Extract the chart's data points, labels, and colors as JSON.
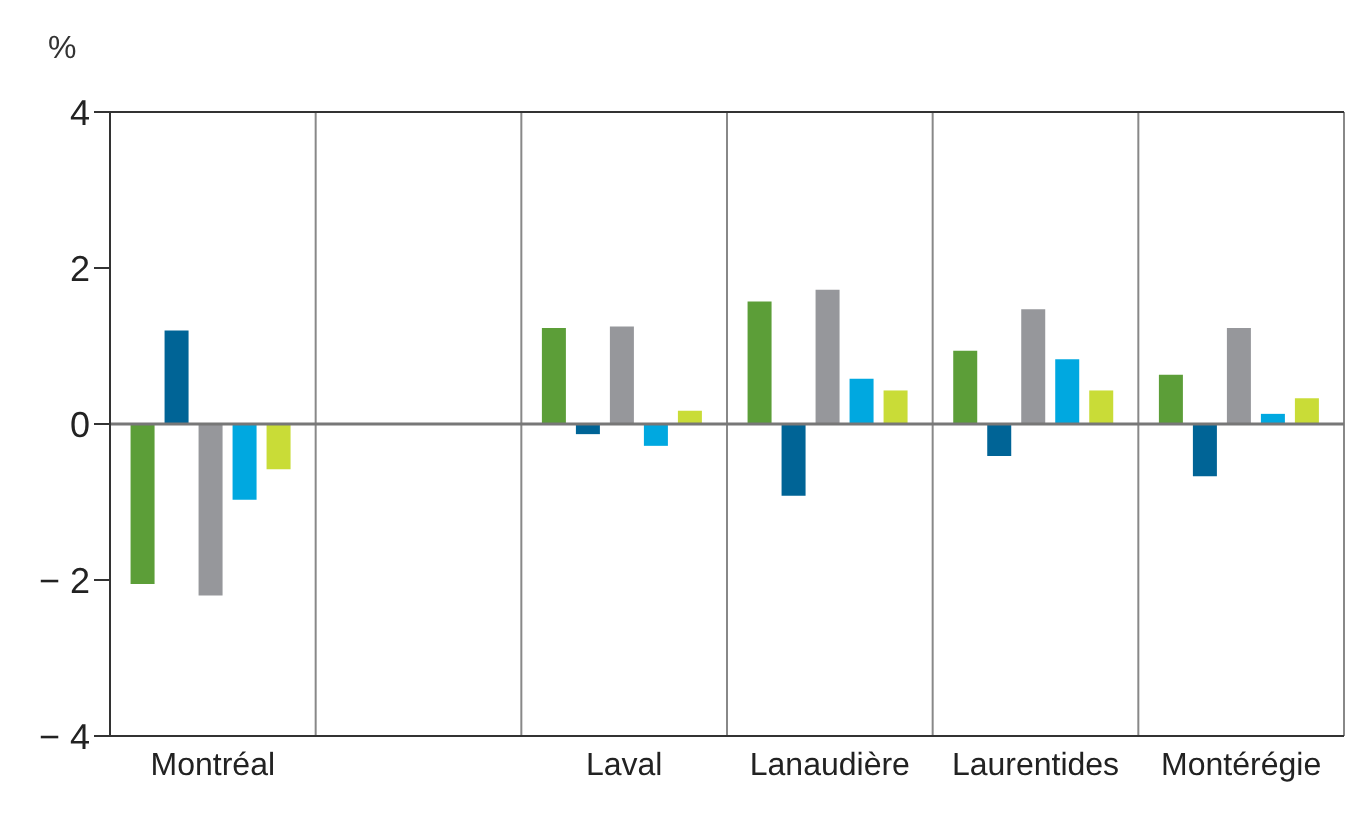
{
  "chart_data": {
    "type": "bar",
    "ylabel": "%",
    "categories": [
      "Montréal",
      null,
      "Laval",
      "Lanaudière",
      "Laurentides",
      "Montérégie"
    ],
    "series": [
      {
        "color": "#5c9e38",
        "values": [
          -2.05,
          null,
          1.23,
          1.57,
          0.94,
          0.63
        ]
      },
      {
        "color": "#006496",
        "values": [
          1.2,
          null,
          -0.13,
          -0.92,
          -0.41,
          -0.67
        ]
      },
      {
        "color": "#96979b",
        "values": [
          -2.2,
          null,
          1.25,
          1.72,
          1.47,
          1.23
        ]
      },
      {
        "color": "#00a8e0",
        "values": [
          -0.97,
          null,
          -0.28,
          0.58,
          0.83,
          0.13
        ]
      },
      {
        "color": "#c9dc37",
        "values": [
          -0.58,
          null,
          0.17,
          0.43,
          0.43,
          0.33
        ]
      }
    ],
    "ylim": [
      -4,
      4
    ],
    "yticks": [
      {
        "value": -4,
        "label": "− 4"
      },
      {
        "value": -2,
        "label": "− 2"
      },
      0,
      2,
      4
    ],
    "grid": "x"
  }
}
